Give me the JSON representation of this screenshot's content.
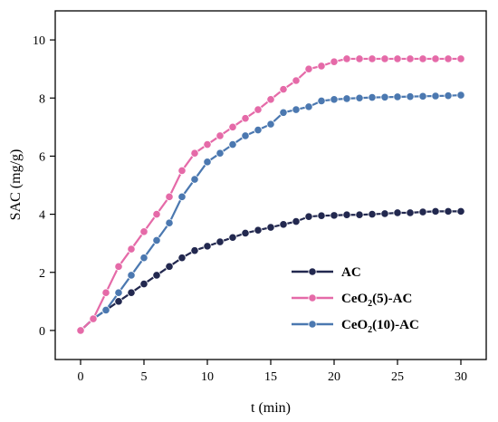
{
  "chart_data": {
    "type": "line",
    "xlabel": "t (min)",
    "ylabel": "SAC (mg/g)",
    "xlim": [
      -2,
      32
    ],
    "ylim": [
      -1,
      11
    ],
    "xticks": [
      0,
      5,
      10,
      15,
      20,
      25,
      30
    ],
    "yticks": [
      0,
      2,
      4,
      6,
      8,
      10
    ],
    "grid": false,
    "legend_position": "lower-right",
    "x": [
      0,
      1,
      2,
      3,
      4,
      5,
      6,
      7,
      8,
      9,
      10,
      11,
      12,
      13,
      14,
      15,
      16,
      17,
      18,
      19,
      20,
      21,
      22,
      23,
      24,
      25,
      26,
      27,
      28,
      29,
      30
    ],
    "series": [
      {
        "name": "AC",
        "legend_main": "AC",
        "legend_sub": "",
        "legend_tail": "",
        "color": "#22284f",
        "values": [
          0,
          0.4,
          0.7,
          1.0,
          1.3,
          1.6,
          1.9,
          2.2,
          2.5,
          2.75,
          2.9,
          3.05,
          3.2,
          3.35,
          3.45,
          3.55,
          3.65,
          3.75,
          3.92,
          3.95,
          3.96,
          3.98,
          3.98,
          4.0,
          4.02,
          4.05,
          4.05,
          4.08,
          4.1,
          4.1,
          4.1
        ]
      },
      {
        "name": "CeO2(5)-AC",
        "legend_main": "CeO",
        "legend_sub": "2",
        "legend_tail": "(5)-AC",
        "color": "#e56aa8",
        "values": [
          0,
          0.4,
          1.3,
          2.2,
          2.8,
          3.4,
          4.0,
          4.6,
          5.5,
          6.1,
          6.4,
          6.7,
          7.0,
          7.3,
          7.6,
          7.95,
          8.3,
          8.6,
          9.0,
          9.1,
          9.25,
          9.35,
          9.35,
          9.35,
          9.35,
          9.35,
          9.35,
          9.35,
          9.35,
          9.35,
          9.35
        ]
      },
      {
        "name": "CeO2(10)-AC",
        "legend_main": "CeO",
        "legend_sub": "2",
        "legend_tail": "(10)-AC",
        "color": "#4b78b0",
        "values": [
          0,
          0.4,
          0.7,
          1.3,
          1.9,
          2.5,
          3.1,
          3.7,
          4.6,
          5.2,
          5.8,
          6.1,
          6.4,
          6.7,
          6.9,
          7.1,
          7.5,
          7.6,
          7.7,
          7.9,
          7.95,
          7.98,
          8.0,
          8.02,
          8.03,
          8.04,
          8.05,
          8.06,
          8.07,
          8.08,
          8.1
        ]
      }
    ]
  }
}
